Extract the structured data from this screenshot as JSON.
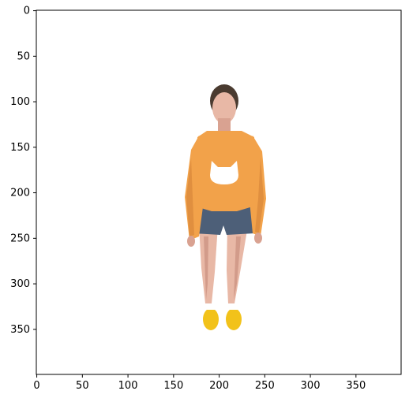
{
  "figure": {
    "image_description_icon": "person-standing-photo-icon"
  },
  "axes": {
    "x_ticks": [
      "0",
      "50",
      "100",
      "150",
      "200",
      "250",
      "300",
      "350"
    ],
    "y_ticks": [
      "0",
      "50",
      "100",
      "150",
      "200",
      "250",
      "300",
      "350"
    ],
    "x_values": [
      0,
      50,
      100,
      150,
      200,
      250,
      300,
      350
    ],
    "y_values": [
      0,
      50,
      100,
      150,
      200,
      250,
      300,
      350
    ],
    "xlim": [
      -0.5,
      399.5
    ],
    "ylim": [
      399.5,
      -0.5
    ]
  },
  "colors": {
    "sweater": "#f2a24a",
    "sweater_shadow": "#d8873a",
    "shorts": "#4d5f78",
    "skin": "#e8b8a6",
    "skin_shadow": "#c98f7f",
    "hair": "#4a3b30",
    "shoes": "#f2c21a",
    "cat_patch": "#ffffff"
  }
}
